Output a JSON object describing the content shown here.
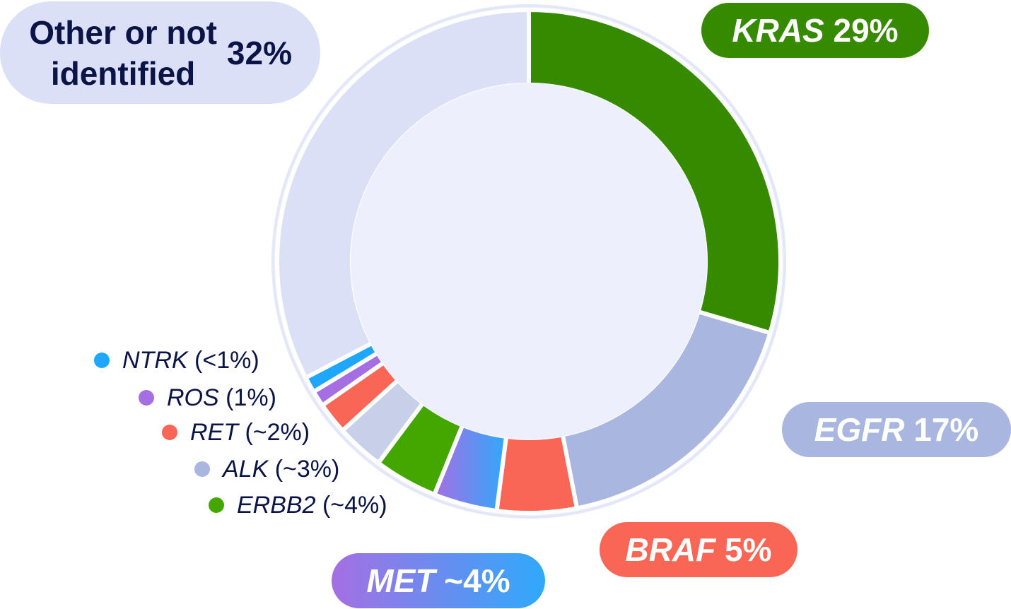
{
  "chart_data": {
    "type": "pie",
    "donut": true,
    "title": "",
    "slices": [
      {
        "label": "KRAS",
        "value": 29,
        "value_text": "29%",
        "color": "#368a00",
        "callout": "pill"
      },
      {
        "label": "EGFR",
        "value": 17,
        "value_text": "17%",
        "color": "#a8b6e0",
        "callout": "pill"
      },
      {
        "label": "BRAF",
        "value": 5,
        "value_text": "5%",
        "color": "#f96655",
        "callout": "pill"
      },
      {
        "label": "MET",
        "value": 4,
        "value_text": "~4%",
        "color_start": "#a56fe3",
        "color_end": "#2fa9fb",
        "callout": "pill"
      },
      {
        "label": "ERBB2",
        "value": 4,
        "value_text": "(~4%)",
        "color": "#44a700",
        "callout": "legend"
      },
      {
        "label": "ALK",
        "value": 3,
        "value_text": "(~3%)",
        "color": "#c8cfe9",
        "legend_color": "#a8b6e0",
        "callout": "legend"
      },
      {
        "label": "RET",
        "value": 2,
        "value_text": "(~2%)",
        "color": "#f96655",
        "callout": "legend"
      },
      {
        "label": "ROS",
        "value": 1,
        "value_text": "(1%)",
        "color": "#a56fe3",
        "callout": "legend"
      },
      {
        "label": "NTRK",
        "value": 1,
        "value_text": "(<1%)",
        "color": "#1ea7fd",
        "callout": "legend"
      },
      {
        "label": "Other or not identified",
        "value": 32,
        "value_text": "32%",
        "color": "#dce0f6",
        "callout": "pill"
      }
    ],
    "start_angle_deg": 0,
    "direction": "clockwise",
    "ring_background": "#eef1fb",
    "ring_outline": "#e3e7f8",
    "center_color": "#edf0fc",
    "accent_text_color": "#0b1446"
  }
}
